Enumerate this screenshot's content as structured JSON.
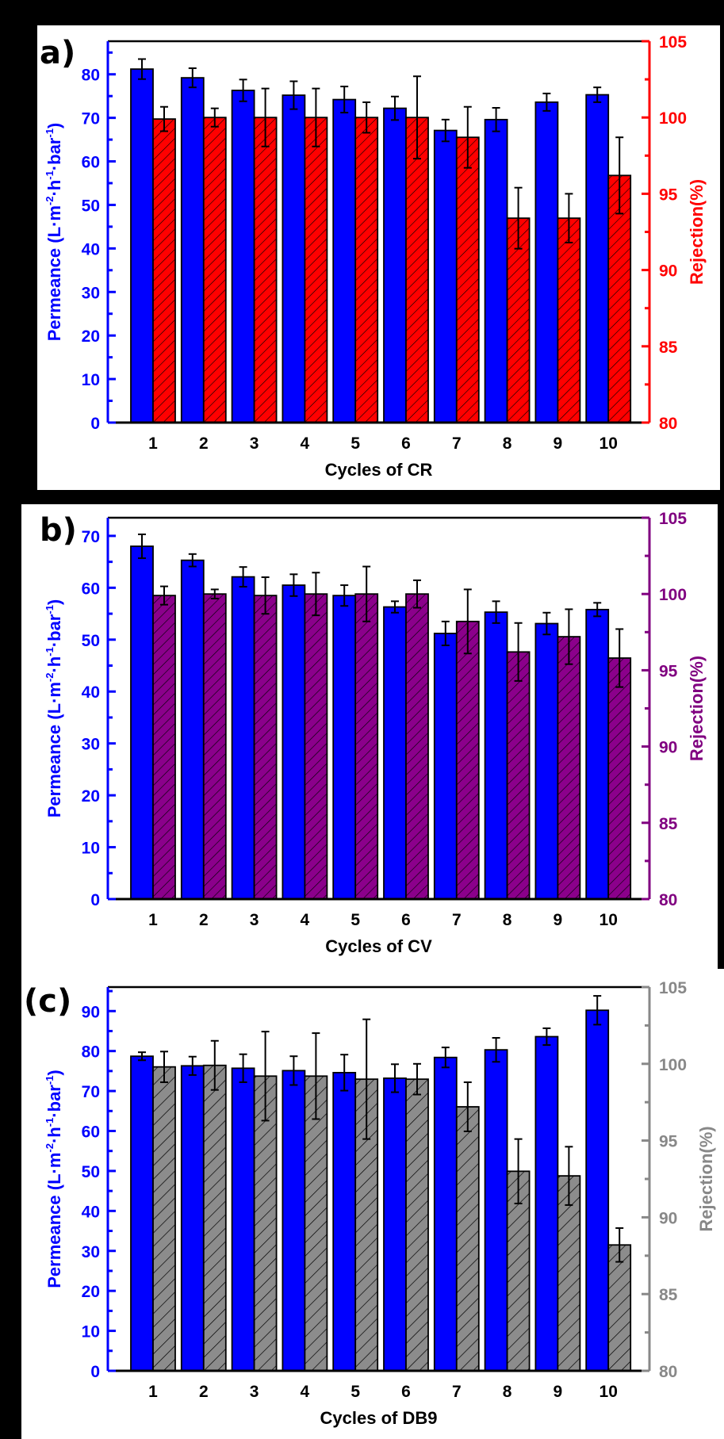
{
  "chart_data": [
    {
      "type": "bar",
      "panel_label": "a)",
      "xlabel": "Cycles of CR",
      "ylabel": "Permeance (L·m⁻²·h⁻¹·bar⁻¹)",
      "ylabel_parts": {
        "main": "Permeance (L·m",
        "sup1": "-2",
        "mid1": "·h",
        "sup2": "-1",
        "mid2": "·bar",
        "sup3": "-1",
        "end": ")"
      },
      "y2label": "Rejection(%)",
      "categories": [
        "1",
        "2",
        "3",
        "4",
        "5",
        "6",
        "7",
        "8",
        "9",
        "10"
      ],
      "ylim": [
        0,
        87.6
      ],
      "yticks": [
        0,
        10,
        20,
        30,
        40,
        50,
        60,
        70,
        80
      ],
      "y2lim": [
        80,
        105
      ],
      "y2ticks": [
        80,
        85,
        90,
        95,
        100,
        105
      ],
      "colors": {
        "permeance": "#0000ff",
        "rejection": "#ff0000",
        "left_axis": "#0000ff",
        "right_axis": "#ff0000"
      },
      "series": [
        {
          "name": "Permeance",
          "axis": "left",
          "values": [
            81.2,
            79.2,
            76.3,
            75.2,
            74.2,
            72.2,
            67.1,
            69.6,
            73.6,
            75.3
          ],
          "errors": [
            2.3,
            2.2,
            2.5,
            3.2,
            3.0,
            2.7,
            2.5,
            2.7,
            2.0,
            1.7
          ]
        },
        {
          "name": "Rejection",
          "axis": "right",
          "values": [
            99.9,
            100.0,
            100.0,
            100.0,
            100.0,
            100.0,
            98.7,
            93.4,
            93.4,
            96.2
          ],
          "errors": [
            0.8,
            0.6,
            1.9,
            1.9,
            1.0,
            2.7,
            2.0,
            2.0,
            1.6,
            2.5
          ]
        }
      ]
    },
    {
      "type": "bar",
      "panel_label": "b)",
      "xlabel": "Cycles of CV",
      "ylabel": "Permeance (L·m⁻²·h⁻¹·bar⁻¹)",
      "ylabel_parts": {
        "main": "Permeance (L·m",
        "sup1": "-2",
        "mid1": "·h",
        "sup2": "-1",
        "mid2": "·bar",
        "sup3": "-1",
        "end": ")"
      },
      "y2label": "Rejection(%)",
      "categories": [
        "1",
        "2",
        "3",
        "4",
        "5",
        "6",
        "7",
        "8",
        "9",
        "10"
      ],
      "ylim": [
        0,
        73.5
      ],
      "yticks": [
        0,
        10,
        20,
        30,
        40,
        50,
        60,
        70
      ],
      "y2lim": [
        80,
        105
      ],
      "y2ticks": [
        80,
        85,
        90,
        95,
        100,
        105
      ],
      "colors": {
        "permeance": "#0000ff",
        "rejection": "#8b008b",
        "left_axis": "#0000ff",
        "right_axis": "#800080"
      },
      "series": [
        {
          "name": "Permeance",
          "axis": "left",
          "values": [
            68.0,
            65.3,
            62.1,
            60.5,
            58.5,
            56.3,
            51.2,
            55.3,
            53.1,
            55.8
          ],
          "errors": [
            2.3,
            1.2,
            1.9,
            2.1,
            2.0,
            1.1,
            2.3,
            2.1,
            2.1,
            1.3
          ]
        },
        {
          "name": "Rejection",
          "axis": "right",
          "values": [
            99.9,
            100.0,
            99.9,
            100.0,
            100.0,
            100.0,
            98.2,
            96.2,
            97.2,
            95.8
          ],
          "errors": [
            0.6,
            0.3,
            1.2,
            1.4,
            1.8,
            0.9,
            2.1,
            1.9,
            1.8,
            1.9
          ]
        }
      ]
    },
    {
      "type": "bar",
      "panel_label": "(c)",
      "xlabel": "Cycles of DB9",
      "ylabel": "Permeance (L·m⁻²·h⁻¹·bar⁻¹)",
      "ylabel_parts": {
        "main": "Permeance (L·m",
        "sup1": "-2",
        "mid1": "·h",
        "sup2": "-1",
        "mid2": "·bar",
        "sup3": "-1",
        "end": ")"
      },
      "y2label": "Rejection(%)",
      "categories": [
        "1",
        "2",
        "3",
        "4",
        "5",
        "6",
        "7",
        "8",
        "9",
        "10"
      ],
      "ylim": [
        0,
        96
      ],
      "yticks": [
        0,
        10,
        20,
        30,
        40,
        50,
        60,
        70,
        80,
        90
      ],
      "y2lim": [
        80,
        105
      ],
      "y2ticks": [
        80,
        85,
        90,
        95,
        100,
        105
      ],
      "colors": {
        "permeance": "#0000ff",
        "rejection": "#8c8c8c",
        "left_axis": "#0000ff",
        "right_axis": "#888888"
      },
      "series": [
        {
          "name": "Permeance",
          "axis": "left",
          "values": [
            78.7,
            76.3,
            75.7,
            75.1,
            74.6,
            73.2,
            78.4,
            80.3,
            83.6,
            90.2
          ],
          "errors": [
            1.0,
            2.3,
            3.5,
            3.6,
            4.5,
            3.5,
            2.5,
            3.0,
            2.1,
            3.6
          ]
        },
        {
          "name": "Rejection",
          "axis": "right",
          "values": [
            99.8,
            99.9,
            99.2,
            99.2,
            99.0,
            99.0,
            97.2,
            93.0,
            92.7,
            88.2
          ],
          "errors": [
            1.0,
            1.6,
            2.9,
            2.8,
            3.9,
            1.0,
            1.6,
            2.1,
            1.9,
            1.1
          ]
        }
      ]
    }
  ]
}
